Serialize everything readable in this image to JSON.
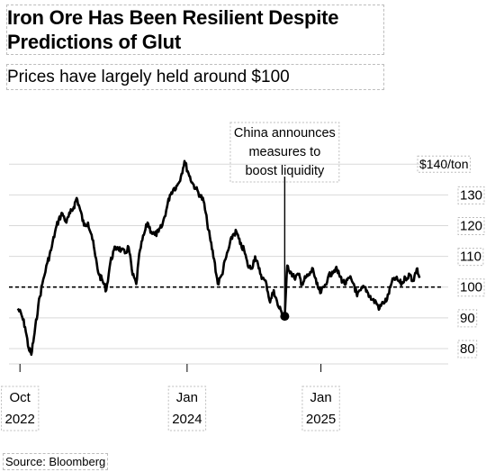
{
  "header": {
    "title": "Iron Ore Has Been Resilient Despite Predictions of Glut",
    "subtitle": "Prices have largely held around $100"
  },
  "footer": {
    "source": "Source: Bloomberg"
  },
  "chart_data": {
    "type": "line",
    "title": "Iron Ore Has Been Resilient Despite Predictions of Glut",
    "subtitle": "Prices have largely held around $100",
    "unit_label": "$140/ton",
    "ylim": [
      75,
      143
    ],
    "y_ticks": [
      {
        "value": 140,
        "label": "$140/ton"
      },
      {
        "value": 130,
        "label": "130"
      },
      {
        "value": 120,
        "label": "120"
      },
      {
        "value": 110,
        "label": "110"
      },
      {
        "value": 100,
        "label": "100"
      },
      {
        "value": 90,
        "label": "90"
      },
      {
        "value": 80,
        "label": "80"
      }
    ],
    "x_ticks": [
      {
        "date": "2022-10-01",
        "lines": [
          "Oct",
          "2022"
        ]
      },
      {
        "date": "2024-01-01",
        "lines": [
          "Jan",
          "2024"
        ]
      },
      {
        "date": "2025-01-01",
        "lines": [
          "Jan",
          "2025"
        ]
      }
    ],
    "xlim": [
      "2022-09-01",
      "2025-12-15"
    ],
    "reference_line": {
      "value": 100,
      "style": "dashed"
    },
    "annotation": {
      "date": "2024-09-24",
      "value": 90.5,
      "lines": [
        "China announces",
        "measures to",
        "boost liquidity"
      ]
    },
    "grid": true,
    "series": [
      {
        "values": [
          [
            "2022-09-25",
            93
          ],
          [
            "2022-10-05",
            91
          ],
          [
            "2022-10-15",
            87
          ],
          [
            "2022-10-25",
            80
          ],
          [
            "2022-11-01",
            78
          ],
          [
            "2022-11-10",
            85
          ],
          [
            "2022-11-20",
            94
          ],
          [
            "2022-12-01",
            101
          ],
          [
            "2022-12-15",
            108
          ],
          [
            "2022-12-25",
            112
          ],
          [
            "2023-01-05",
            118
          ],
          [
            "2023-01-15",
            122
          ],
          [
            "2023-01-25",
            124
          ],
          [
            "2023-02-05",
            121
          ],
          [
            "2023-02-15",
            124
          ],
          [
            "2023-02-25",
            126
          ],
          [
            "2023-03-05",
            129
          ],
          [
            "2023-03-15",
            125
          ],
          [
            "2023-03-25",
            120
          ],
          [
            "2023-04-05",
            121
          ],
          [
            "2023-04-15",
            117
          ],
          [
            "2023-04-25",
            110
          ],
          [
            "2023-05-05",
            104
          ],
          [
            "2023-05-15",
            102
          ],
          [
            "2023-05-25",
            99
          ],
          [
            "2023-06-05",
            108
          ],
          [
            "2023-06-15",
            112
          ],
          [
            "2023-06-25",
            113
          ],
          [
            "2023-07-05",
            112
          ],
          [
            "2023-07-15",
            111
          ],
          [
            "2023-07-25",
            113
          ],
          [
            "2023-08-05",
            104
          ],
          [
            "2023-08-15",
            101
          ],
          [
            "2023-08-25",
            112
          ],
          [
            "2023-09-05",
            117
          ],
          [
            "2023-09-15",
            121
          ],
          [
            "2023-09-25",
            118
          ],
          [
            "2023-10-05",
            117
          ],
          [
            "2023-10-15",
            118
          ],
          [
            "2023-10-25",
            120
          ],
          [
            "2023-11-05",
            125
          ],
          [
            "2023-11-15",
            130
          ],
          [
            "2023-11-25",
            132
          ],
          [
            "2023-12-05",
            133
          ],
          [
            "2023-12-15",
            136
          ],
          [
            "2023-12-25",
            141
          ],
          [
            "2024-01-05",
            137
          ],
          [
            "2024-01-15",
            134
          ],
          [
            "2024-01-25",
            132
          ],
          [
            "2024-02-05",
            130
          ],
          [
            "2024-02-15",
            128
          ],
          [
            "2024-02-25",
            121
          ],
          [
            "2024-03-05",
            115
          ],
          [
            "2024-03-15",
            109
          ],
          [
            "2024-03-25",
            101
          ],
          [
            "2024-04-05",
            104
          ],
          [
            "2024-04-15",
            109
          ],
          [
            "2024-04-25",
            113
          ],
          [
            "2024-05-05",
            117
          ],
          [
            "2024-05-15",
            118
          ],
          [
            "2024-05-25",
            114
          ],
          [
            "2024-06-05",
            112
          ],
          [
            "2024-06-15",
            107
          ],
          [
            "2024-06-25",
            106
          ],
          [
            "2024-07-05",
            110
          ],
          [
            "2024-07-15",
            106
          ],
          [
            "2024-07-25",
            103
          ],
          [
            "2024-08-05",
            101
          ],
          [
            "2024-08-15",
            95
          ],
          [
            "2024-08-25",
            99
          ],
          [
            "2024-09-05",
            94
          ],
          [
            "2024-09-15",
            92
          ],
          [
            "2024-09-24",
            90.5
          ],
          [
            "2024-10-01",
            107
          ],
          [
            "2024-10-10",
            105
          ],
          [
            "2024-10-20",
            103
          ],
          [
            "2024-11-01",
            104
          ],
          [
            "2024-11-10",
            101
          ],
          [
            "2024-11-20",
            103
          ],
          [
            "2024-12-01",
            104
          ],
          [
            "2024-12-10",
            106
          ],
          [
            "2024-12-20",
            101
          ],
          [
            "2024-12-30",
            98
          ],
          [
            "2025-01-10",
            100
          ],
          [
            "2025-01-20",
            103
          ],
          [
            "2025-02-01",
            105
          ],
          [
            "2025-02-10",
            106
          ],
          [
            "2025-02-20",
            104
          ],
          [
            "2025-03-01",
            102
          ],
          [
            "2025-03-10",
            101
          ],
          [
            "2025-03-20",
            103
          ],
          [
            "2025-04-01",
            101
          ],
          [
            "2025-04-10",
            97
          ],
          [
            "2025-04-20",
            99
          ],
          [
            "2025-05-01",
            100
          ],
          [
            "2025-05-10",
            98
          ],
          [
            "2025-05-20",
            96
          ],
          [
            "2025-06-01",
            95
          ],
          [
            "2025-06-10",
            93
          ],
          [
            "2025-06-20",
            95
          ],
          [
            "2025-07-01",
            96
          ],
          [
            "2025-07-10",
            100
          ],
          [
            "2025-07-20",
            103
          ],
          [
            "2025-08-01",
            102
          ],
          [
            "2025-08-10",
            101
          ],
          [
            "2025-08-20",
            103
          ],
          [
            "2025-09-01",
            104
          ],
          [
            "2025-09-10",
            102
          ],
          [
            "2025-09-20",
            106
          ],
          [
            "2025-09-28",
            103
          ]
        ]
      }
    ]
  }
}
